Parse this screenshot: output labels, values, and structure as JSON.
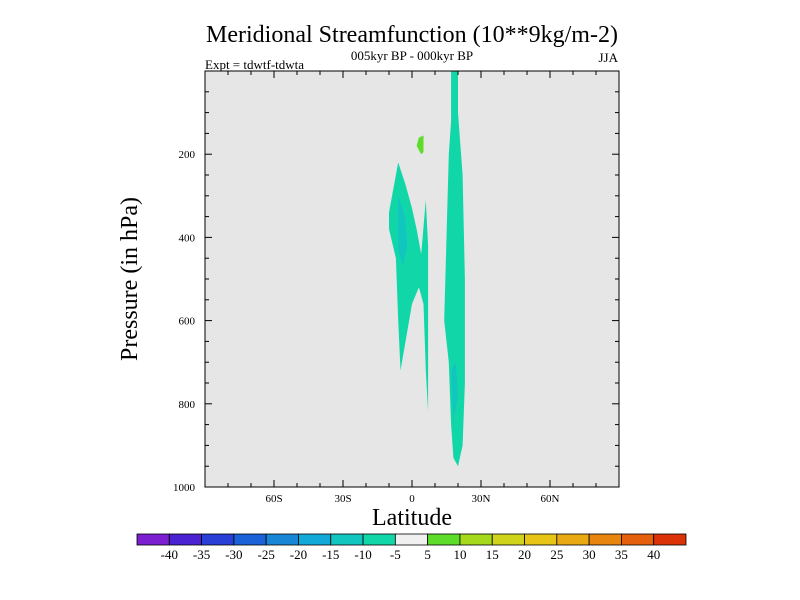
{
  "chart_data": {
    "type": "contour",
    "title": "Meridional Streamfunction (10**9kg/m-2)",
    "subtitle": "005kyr BP - 000kyr BP",
    "left_label": "Expt = tdwtf-tdwta",
    "right_label": "JJA",
    "xlabel": "Latitude",
    "ylabel": "Pressure (in hPa)",
    "xlim": [
      -90,
      90
    ],
    "ylim": [
      1000,
      0
    ],
    "x_ticks": [
      {
        "value": -60,
        "label": "60S"
      },
      {
        "value": -30,
        "label": "30S"
      },
      {
        "value": 0,
        "label": "0"
      },
      {
        "value": 30,
        "label": "30N"
      },
      {
        "value": 60,
        "label": "60N"
      }
    ],
    "y_ticks": [
      {
        "value": 200,
        "label": "200"
      },
      {
        "value": 400,
        "label": "400"
      },
      {
        "value": 600,
        "label": "600"
      },
      {
        "value": 800,
        "label": "800"
      },
      {
        "value": 1000,
        "label": "1000"
      }
    ],
    "background_color": "#e6e6e6",
    "contour_regions": [
      {
        "name": "nh-tropical-negative-band",
        "level_range": [
          -10,
          -5
        ],
        "color": "#11d7a8",
        "outline": [
          [
            17,
            0
          ],
          [
            20,
            0
          ],
          [
            20,
            100
          ],
          [
            22,
            250
          ],
          [
            23,
            500
          ],
          [
            23,
            750
          ],
          [
            22,
            900
          ],
          [
            20,
            950
          ],
          [
            18,
            930
          ],
          [
            17,
            850
          ],
          [
            16,
            700
          ],
          [
            14,
            600
          ],
          [
            15,
            400
          ],
          [
            16,
            200
          ],
          [
            17,
            120
          ]
        ]
      },
      {
        "name": "nh-tropical-core",
        "level_range": [
          -15,
          -10
        ],
        "color": "#12c6c0",
        "outline": [
          [
            17,
            720
          ],
          [
            19,
            700
          ],
          [
            20,
            780
          ],
          [
            18,
            840
          ]
        ]
      },
      {
        "name": "sh-tropical-negative-band",
        "level_range": [
          -10,
          -5
        ],
        "color": "#11d7a8",
        "outline": [
          [
            -6,
            220
          ],
          [
            -3,
            270
          ],
          [
            0,
            330
          ],
          [
            2,
            380
          ],
          [
            4,
            440
          ],
          [
            6,
            310
          ],
          [
            7,
            420
          ],
          [
            7,
            820
          ],
          [
            6,
            720
          ],
          [
            5,
            560
          ],
          [
            3,
            520
          ],
          [
            0,
            560
          ],
          [
            -5,
            720
          ],
          [
            -6,
            600
          ],
          [
            -7,
            450
          ],
          [
            -10,
            380
          ],
          [
            -10,
            340
          ]
        ]
      },
      {
        "name": "sh-tropical-core",
        "level_range": [
          -15,
          -10
        ],
        "color": "#12c6c0",
        "outline": [
          [
            -6,
            300
          ],
          [
            -3,
            350
          ],
          [
            -2,
            420
          ],
          [
            -4,
            470
          ],
          [
            -6,
            430
          ]
        ]
      },
      {
        "name": "upper-positive-spot",
        "level_range": [
          5,
          10
        ],
        "color": "#5ddc2a",
        "outline": [
          [
            3,
            160
          ],
          [
            5,
            155
          ],
          [
            5,
            195
          ],
          [
            4,
            200
          ],
          [
            2,
            180
          ]
        ]
      }
    ],
    "colorbar": {
      "levels": [
        "-40",
        "-35",
        "-30",
        "-25",
        "-20",
        "-15",
        "-10",
        "-5",
        "5",
        "10",
        "15",
        "20",
        "25",
        "30",
        "35",
        "40"
      ],
      "colors": [
        "#7b1fd1",
        "#4a22d2",
        "#2a3fd6",
        "#1b62d8",
        "#1886d4",
        "#12a9d8",
        "#12c6c0",
        "#11d7a8",
        "#f0f0f0",
        "#5ddc2a",
        "#a4d91c",
        "#cfd31a",
        "#e8c417",
        "#e8a913",
        "#e7850f",
        "#e4600c",
        "#dc3208"
      ]
    }
  }
}
